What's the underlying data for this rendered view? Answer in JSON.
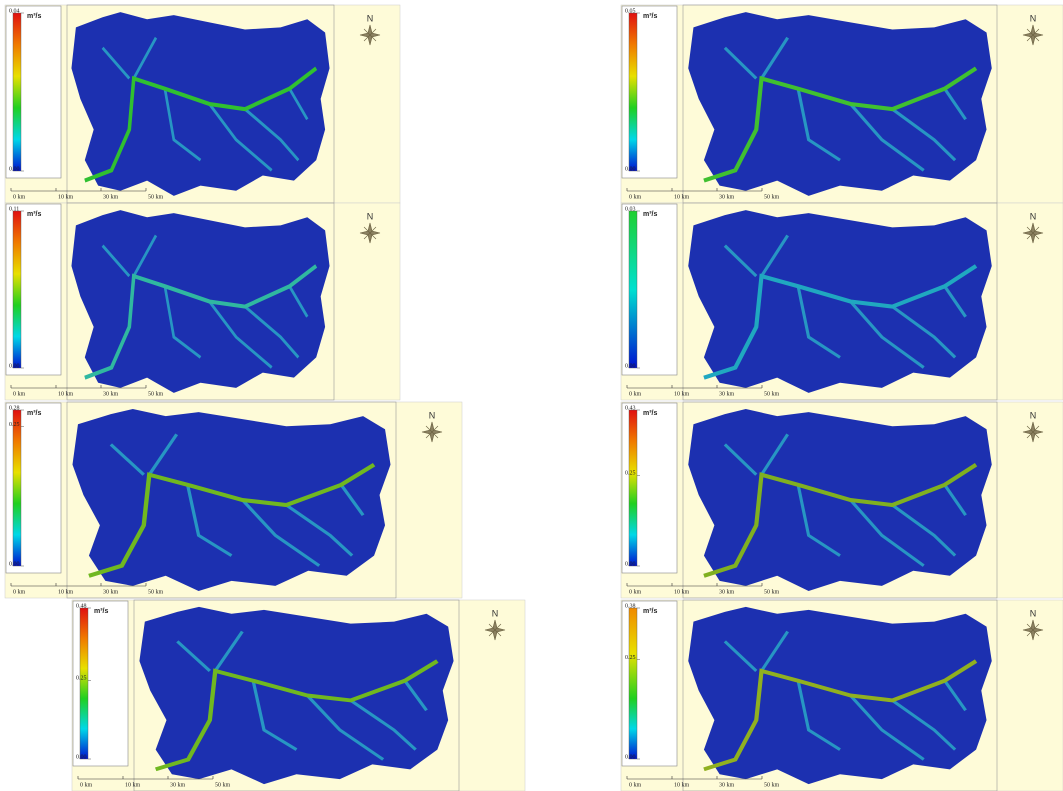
{
  "panels": [
    {
      "legend_ticks": [
        "0.04",
        "0.00"
      ],
      "unit": "m³/s",
      "scale_labels": [
        "0 km",
        "10 km",
        "30 km",
        "50 km"
      ],
      "north": "N"
    },
    {
      "legend_ticks": [
        "0.05",
        "0.00"
      ],
      "unit": "m³/s",
      "scale_labels": [
        "0 km",
        "10 km",
        "30 km",
        "50 km"
      ],
      "north": "N"
    },
    {
      "legend_ticks": [
        "0.11",
        "0.00"
      ],
      "unit": "m³/s",
      "scale_labels": [
        "0 km",
        "10 km",
        "30 km",
        "50 km"
      ],
      "north": "N"
    },
    {
      "legend_ticks": [
        "0.03",
        "0.00"
      ],
      "unit": "m³/s",
      "scale_labels": [
        "0 km",
        "10 km",
        "30 km",
        "50 km"
      ],
      "north": "N"
    },
    {
      "legend_ticks": [
        "0.28",
        "0.25",
        "0.00"
      ],
      "unit": "m³/s",
      "scale_labels": [
        "0 km",
        "10 km",
        "30 km",
        "50 km"
      ],
      "north": "N"
    },
    {
      "legend_ticks": [
        "0.43",
        "0.25",
        "0.00"
      ],
      "unit": "m³/s",
      "scale_labels": [
        "0 km",
        "10 km",
        "30 km",
        "50 km"
      ],
      "north": "N"
    },
    {
      "legend_ticks": [
        "0.48",
        "0.25",
        "0.00"
      ],
      "unit": "m³/s",
      "scale_labels": [
        "0 km",
        "10 km",
        "30 km",
        "50 km"
      ],
      "north": "N"
    },
    {
      "legend_ticks": [
        "0.38",
        "0.25",
        "0.00"
      ],
      "unit": "m³/s",
      "scale_labels": [
        "0 km",
        "10 km",
        "30 km",
        "50 km"
      ],
      "north": "N"
    }
  ]
}
